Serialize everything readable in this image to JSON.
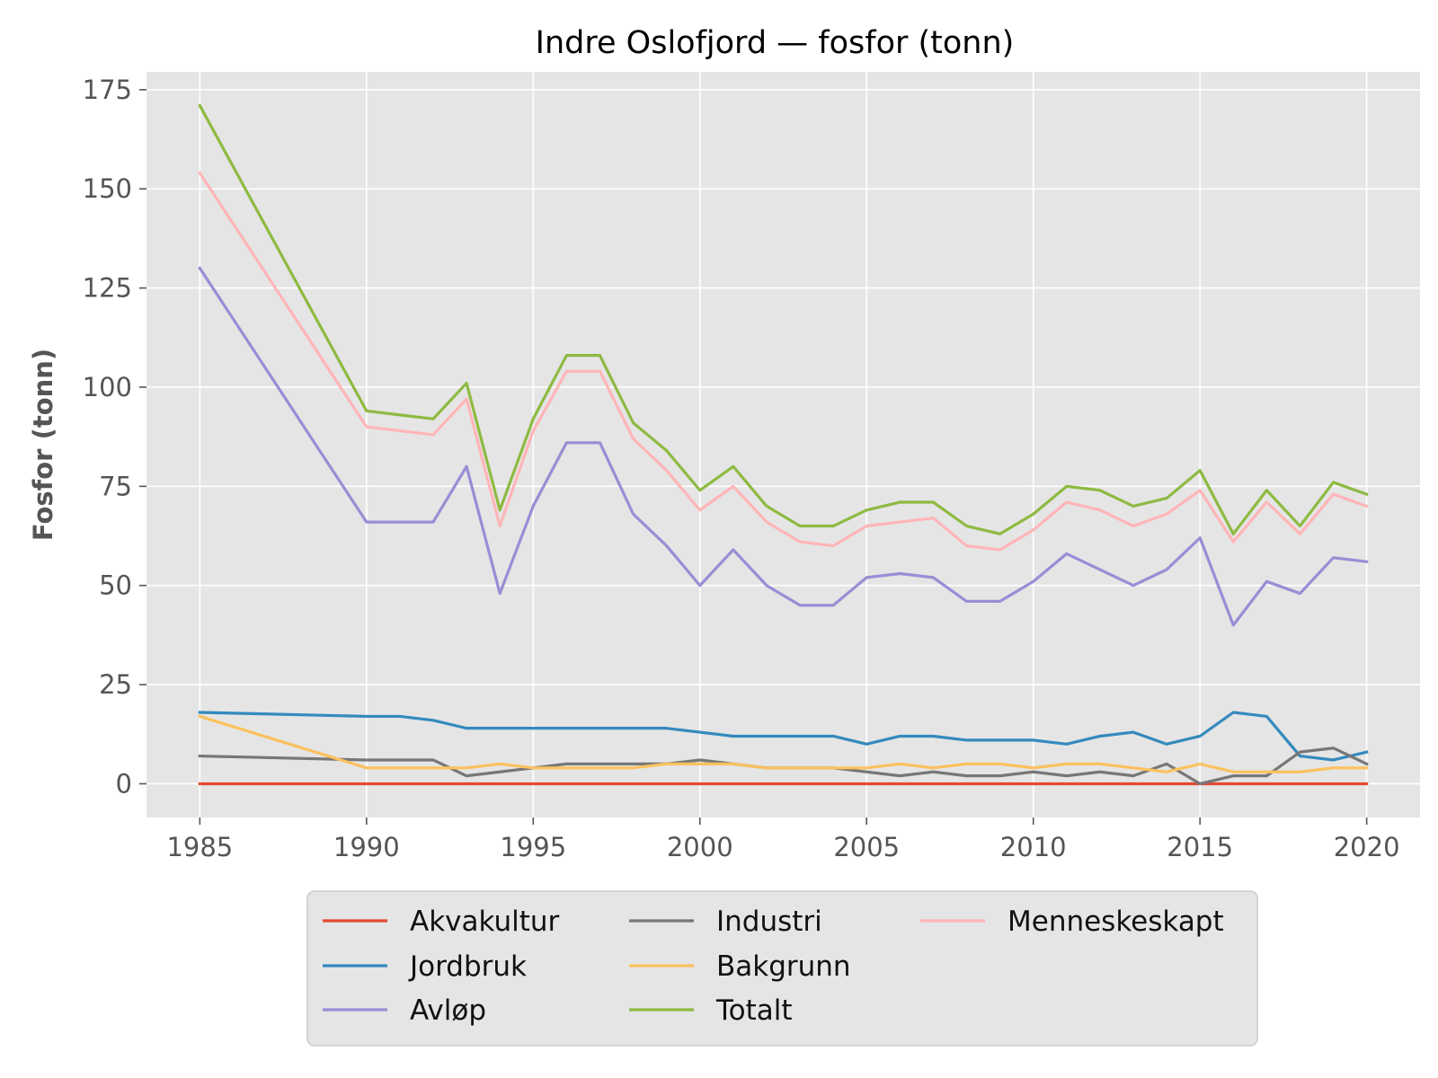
{
  "chart_data": {
    "type": "line",
    "title": "Indre Oslofjord — fosfor (tonn)",
    "xlabel": "",
    "ylabel": "Fosfor (tonn)",
    "xlim": [
      1983.4,
      2021.6
    ],
    "ylim": [
      -8.5,
      179.5
    ],
    "xticks": [
      1985,
      1990,
      1995,
      2000,
      2005,
      2010,
      2015,
      2020
    ],
    "yticks": [
      0,
      25,
      50,
      75,
      100,
      125,
      150,
      175
    ],
    "grid": true,
    "legend_position": "bottom-center",
    "x": [
      1985,
      1990,
      1991,
      1992,
      1993,
      1994,
      1995,
      1996,
      1997,
      1998,
      1999,
      2000,
      2001,
      2002,
      2003,
      2004,
      2005,
      2006,
      2007,
      2008,
      2009,
      2010,
      2011,
      2012,
      2013,
      2014,
      2015,
      2016,
      2017,
      2018,
      2019,
      2020
    ],
    "series": [
      {
        "name": "Akvakultur",
        "color": "#E24A33",
        "values": [
          0,
          0,
          0,
          0,
          0,
          0,
          0,
          0,
          0,
          0,
          0,
          0,
          0,
          0,
          0,
          0,
          0,
          0,
          0,
          0,
          0,
          0,
          0,
          0,
          0,
          0,
          0,
          0,
          0,
          0,
          0,
          0
        ]
      },
      {
        "name": "Jordbruk",
        "color": "#348ABD",
        "values": [
          18,
          17,
          17,
          16,
          14,
          14,
          14,
          14,
          14,
          14,
          14,
          13,
          12,
          12,
          12,
          12,
          10,
          12,
          12,
          11,
          11,
          11,
          10,
          12,
          13,
          10,
          12,
          18,
          17,
          7,
          6,
          8
        ]
      },
      {
        "name": "Avløp",
        "color": "#988ED5",
        "values": [
          130,
          66,
          66,
          66,
          80,
          48,
          70,
          86,
          86,
          68,
          60,
          50,
          59,
          50,
          45,
          45,
          52,
          53,
          52,
          46,
          46,
          51,
          58,
          54,
          50,
          54,
          62,
          40,
          51,
          48,
          57,
          56
        ]
      },
      {
        "name": "Industri",
        "color": "#777777",
        "values": [
          7,
          6,
          6,
          6,
          2,
          3,
          4,
          5,
          5,
          5,
          5,
          6,
          5,
          4,
          4,
          4,
          3,
          2,
          3,
          2,
          2,
          3,
          2,
          3,
          2,
          5,
          0,
          2,
          2,
          8,
          9,
          5
        ]
      },
      {
        "name": "Bakgrunn",
        "color": "#FBC15E",
        "values": [
          17,
          4,
          4,
          4,
          4,
          5,
          4,
          4,
          4,
          4,
          5,
          5,
          5,
          4,
          4,
          4,
          4,
          5,
          4,
          5,
          5,
          4,
          5,
          5,
          4,
          3,
          5,
          3,
          3,
          3,
          4,
          4
        ]
      },
      {
        "name": "Totalt",
        "color": "#8EBA42",
        "values": [
          171,
          94,
          93,
          92,
          101,
          69,
          92,
          108,
          108,
          91,
          84,
          74,
          80,
          70,
          65,
          65,
          69,
          71,
          71,
          65,
          63,
          68,
          75,
          74,
          70,
          72,
          79,
          63,
          74,
          65,
          76,
          73
        ]
      },
      {
        "name": "Menneskeskapt",
        "color": "#FFB5B8",
        "values": [
          154,
          90,
          89,
          88,
          97,
          65,
          89,
          104,
          104,
          87,
          79,
          69,
          75,
          66,
          61,
          60,
          65,
          66,
          67,
          60,
          59,
          64,
          71,
          69,
          65,
          68,
          74,
          61,
          71,
          63,
          73,
          70
        ]
      }
    ],
    "legend_order": [
      "Akvakultur",
      "Jordbruk",
      "Avløp",
      "Industri",
      "Bakgrunn",
      "Totalt",
      "Menneskeskapt"
    ],
    "colors": {
      "plot_background": "#E5E5E5",
      "grid": "#FFFFFF",
      "legend_background": "#E5E5E5",
      "legend_border": "#CCCCCC",
      "tick_text": "#555555"
    }
  }
}
